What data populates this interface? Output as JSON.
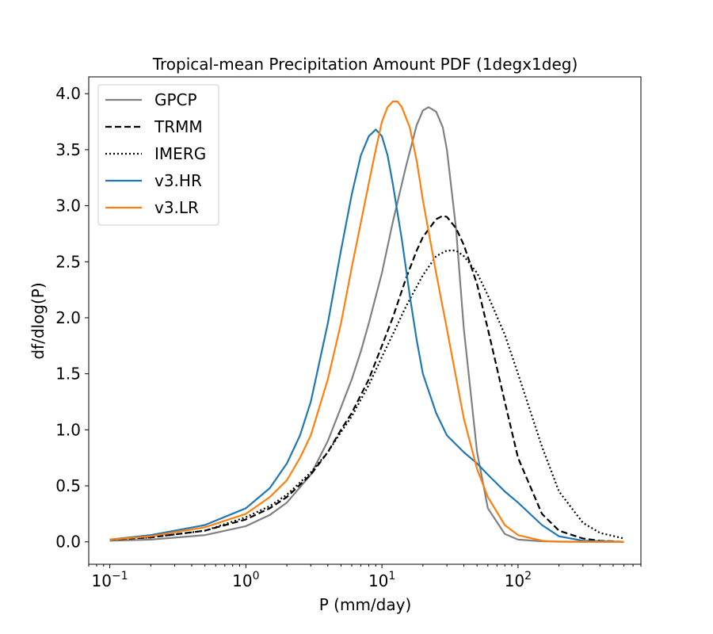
{
  "chart_data": {
    "type": "line",
    "title": "Tropical-mean Precipitation Amount PDF (1degx1deg)",
    "xlabel": "P (mm/day)",
    "ylabel": "df/dlog(P)",
    "xscale": "log",
    "xlim": [
      0.07,
      800
    ],
    "ylim": [
      -0.2,
      4.15
    ],
    "xticks": [
      {
        "value": 0.1,
        "base": "10",
        "exp": "−1"
      },
      {
        "value": 1,
        "base": "10",
        "exp": "0"
      },
      {
        "value": 10,
        "base": "10",
        "exp": "1"
      },
      {
        "value": 100,
        "base": "10",
        "exp": "2"
      }
    ],
    "yticks": [
      {
        "value": 0.0,
        "label": "0.0"
      },
      {
        "value": 0.5,
        "label": "0.5"
      },
      {
        "value": 1.0,
        "label": "1.0"
      },
      {
        "value": 1.5,
        "label": "1.5"
      },
      {
        "value": 2.0,
        "label": "2.0"
      },
      {
        "value": 2.5,
        "label": "2.5"
      },
      {
        "value": 3.0,
        "label": "3.0"
      },
      {
        "value": 3.5,
        "label": "3.5"
      },
      {
        "value": 4.0,
        "label": "4.0"
      }
    ],
    "legend_position": "upper-left",
    "series": [
      {
        "name": "GPCP",
        "color": "#808080",
        "style": "solid",
        "x": [
          0.1,
          0.2,
          0.5,
          1,
          1.5,
          2,
          3,
          4,
          5,
          6,
          7,
          8,
          10,
          12,
          15,
          18,
          20,
          22,
          25,
          28,
          30,
          35,
          40,
          50,
          60,
          80,
          100,
          150,
          200,
          300,
          600
        ],
        "y": [
          0.01,
          0.02,
          0.06,
          0.14,
          0.24,
          0.35,
          0.6,
          0.9,
          1.2,
          1.45,
          1.7,
          1.95,
          2.4,
          2.85,
          3.35,
          3.72,
          3.85,
          3.88,
          3.84,
          3.7,
          3.5,
          2.8,
          1.9,
          0.8,
          0.3,
          0.07,
          0.02,
          0.005,
          0.002,
          0.001,
          0.0
        ]
      },
      {
        "name": "TRMM",
        "color": "#000000",
        "style": "dashed",
        "x": [
          0.1,
          0.2,
          0.5,
          1,
          1.5,
          2,
          3,
          4,
          5,
          6,
          8,
          10,
          12,
          15,
          18,
          20,
          25,
          28,
          30,
          35,
          40,
          50,
          60,
          80,
          100,
          150,
          200,
          300,
          400,
          600
        ],
        "y": [
          0.02,
          0.04,
          0.1,
          0.2,
          0.3,
          0.4,
          0.6,
          0.8,
          1.0,
          1.15,
          1.45,
          1.75,
          2.0,
          2.35,
          2.6,
          2.72,
          2.88,
          2.91,
          2.9,
          2.8,
          2.65,
          2.3,
          1.9,
          1.25,
          0.75,
          0.25,
          0.1,
          0.03,
          0.01,
          0.0
        ]
      },
      {
        "name": "IMERG",
        "color": "#000000",
        "style": "dotted",
        "x": [
          0.1,
          0.2,
          0.5,
          1,
          1.5,
          2,
          3,
          4,
          5,
          6,
          8,
          10,
          12,
          15,
          20,
          25,
          30,
          35,
          40,
          50,
          60,
          80,
          100,
          150,
          200,
          300,
          400,
          600
        ],
        "y": [
          0.02,
          0.04,
          0.1,
          0.22,
          0.32,
          0.42,
          0.62,
          0.8,
          0.98,
          1.12,
          1.4,
          1.65,
          1.85,
          2.1,
          2.38,
          2.55,
          2.6,
          2.6,
          2.55,
          2.4,
          2.2,
          1.85,
          1.5,
          0.85,
          0.45,
          0.17,
          0.08,
          0.03
        ]
      },
      {
        "name": "v3.HR",
        "color": "#1f77b4",
        "style": "solid",
        "x": [
          0.1,
          0.2,
          0.5,
          1,
          1.5,
          2,
          2.5,
          3,
          4,
          5,
          6,
          7,
          8,
          9,
          10,
          11,
          12,
          14,
          16,
          18,
          20,
          25,
          30,
          40,
          50,
          60,
          80,
          100,
          150,
          200,
          300,
          600
        ],
        "y": [
          0.02,
          0.06,
          0.15,
          0.3,
          0.48,
          0.7,
          0.95,
          1.25,
          1.95,
          2.6,
          3.1,
          3.45,
          3.62,
          3.68,
          3.62,
          3.45,
          3.2,
          2.7,
          2.2,
          1.8,
          1.5,
          1.15,
          0.95,
          0.8,
          0.7,
          0.6,
          0.45,
          0.35,
          0.15,
          0.05,
          0.01,
          0.0
        ]
      },
      {
        "name": "v3.LR",
        "color": "#ff7f0e",
        "style": "solid",
        "x": [
          0.1,
          0.2,
          0.5,
          1,
          1.5,
          2,
          2.5,
          3,
          4,
          5,
          6,
          7,
          8,
          9,
          10,
          11,
          12,
          13,
          14,
          16,
          18,
          20,
          25,
          30,
          40,
          50,
          60,
          80,
          100,
          150,
          200,
          300,
          600
        ],
        "y": [
          0.02,
          0.05,
          0.13,
          0.25,
          0.4,
          0.55,
          0.75,
          0.95,
          1.45,
          1.95,
          2.45,
          2.85,
          3.2,
          3.5,
          3.75,
          3.88,
          3.93,
          3.93,
          3.88,
          3.7,
          3.4,
          3.05,
          2.4,
          1.9,
          1.1,
          0.65,
          0.4,
          0.15,
          0.06,
          0.01,
          0.0,
          0.0,
          0.0
        ]
      }
    ]
  }
}
